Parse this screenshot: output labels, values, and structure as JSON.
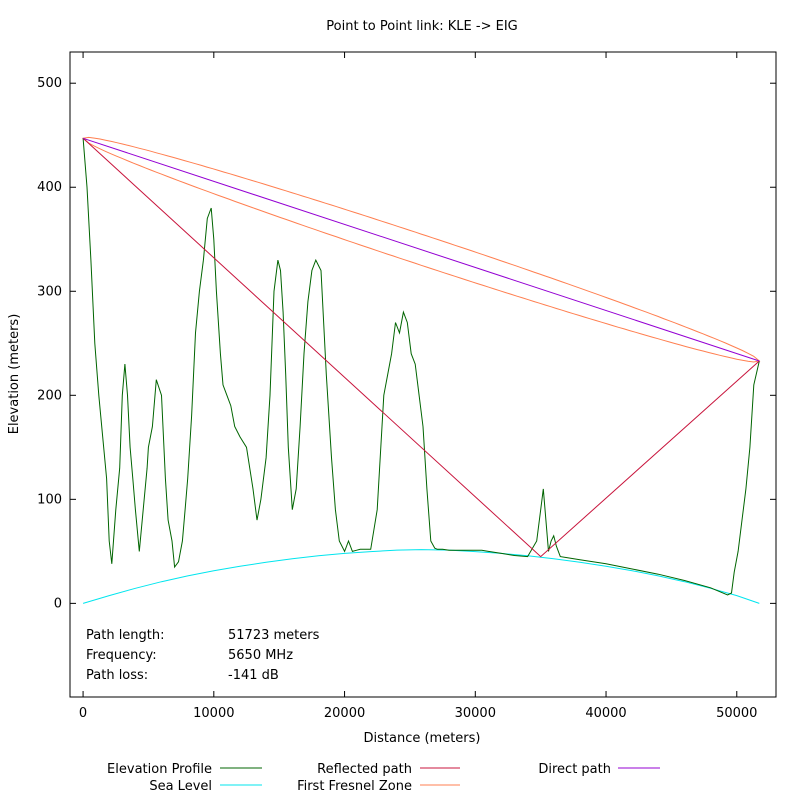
{
  "chart_data": {
    "type": "line",
    "title": "Point to Point link: KLE -> EIG",
    "xlabel": "Distance (meters)",
    "ylabel": "Elevation (meters)",
    "xlim": [
      -1000,
      53000
    ],
    "ylim": [
      -90,
      530
    ],
    "x_ticks": [
      0,
      10000,
      20000,
      30000,
      40000,
      50000
    ],
    "y_ticks": [
      0,
      100,
      200,
      300,
      400,
      500
    ],
    "grid": false,
    "legend_placement": "bottom",
    "info": [
      {
        "label": "Path length:",
        "value": "51723 meters"
      },
      {
        "label": "Frequency:",
        "value": "5650 MHz"
      },
      {
        "label": "Path loss:",
        "value": "-141 dB"
      }
    ],
    "series": [
      {
        "name": "Elevation Profile",
        "color": "#006400",
        "x": [
          0,
          300,
          600,
          900,
          1200,
          1500,
          1800,
          2000,
          2200,
          2500,
          2800,
          3000,
          3200,
          3400,
          3600,
          3800,
          4000,
          4300,
          4600,
          4900,
          5000,
          5300,
          5600,
          6000,
          6300,
          6500,
          6800,
          7000,
          7300,
          7600,
          7800,
          8000,
          8300,
          8600,
          8900,
          9200,
          9500,
          9800,
          10000,
          10200,
          10500,
          10700,
          11000,
          11300,
          11600,
          12000,
          12500,
          13000,
          13300,
          13600,
          14000,
          14300,
          14600,
          14900,
          15100,
          15300,
          15500,
          15700,
          16000,
          16300,
          16600,
          16900,
          17200,
          17500,
          17800,
          18200,
          18600,
          19000,
          19300,
          19600,
          20000,
          20300,
          20600,
          20900,
          21200,
          21500,
          21800,
          22000,
          22500,
          23000,
          23300,
          23600,
          23900,
          24200,
          24500,
          24800,
          25100,
          25400,
          25700,
          26000,
          26300,
          26600,
          26900,
          27100,
          27500,
          28000,
          29000,
          30000,
          30500,
          31000,
          32000,
          33000,
          34000,
          34700,
          35000,
          35200,
          35400,
          35600,
          35800,
          36000,
          36200,
          36500,
          37000,
          38000,
          40000,
          42000,
          44000,
          46000,
          48000,
          49300,
          49600,
          49800,
          50100,
          50400,
          50700,
          51000,
          51300,
          51723
        ],
        "y": [
          447,
          400,
          330,
          250,
          200,
          160,
          120,
          60,
          38,
          90,
          130,
          200,
          230,
          200,
          150,
          120,
          90,
          50,
          90,
          130,
          150,
          170,
          215,
          200,
          120,
          80,
          60,
          35,
          40,
          60,
          90,
          120,
          180,
          260,
          300,
          330,
          370,
          380,
          350,
          300,
          240,
          210,
          200,
          190,
          170,
          160,
          150,
          110,
          80,
          100,
          140,
          200,
          300,
          330,
          320,
          280,
          220,
          150,
          90,
          110,
          170,
          240,
          290,
          320,
          330,
          320,
          220,
          140,
          90,
          60,
          50,
          60,
          50,
          51,
          52,
          52,
          52,
          52,
          90,
          200,
          220,
          240,
          270,
          260,
          280,
          270,
          240,
          230,
          200,
          170,
          110,
          60,
          53,
          52,
          52,
          51,
          51,
          51,
          51,
          50,
          48,
          46,
          45,
          60,
          90,
          110,
          80,
          50,
          60,
          65,
          55,
          45,
          44,
          42,
          38,
          33,
          28,
          22,
          15,
          8,
          10,
          30,
          50,
          80,
          110,
          150,
          210,
          233
        ]
      },
      {
        "name": "Sea Level",
        "color": "#00e5ee",
        "x": [
          0,
          2000,
          4000,
          6000,
          8000,
          10000,
          12000,
          14000,
          16000,
          18000,
          20000,
          22000,
          24000,
          25862,
          28000,
          30000,
          32000,
          34000,
          36000,
          38000,
          40000,
          42000,
          44000,
          46000,
          48000,
          50000,
          51723
        ],
        "y": [
          0,
          7.5,
          14.5,
          20.8,
          26.4,
          31.4,
          35.7,
          39.5,
          42.8,
          45.7,
          48.0,
          49.8,
          51.2,
          51.7,
          51.2,
          49.8,
          48.0,
          45.7,
          42.8,
          39.5,
          35.7,
          31.4,
          26.4,
          20.8,
          14.5,
          7.5,
          0
        ]
      },
      {
        "name": "Reflected path",
        "color": "#c8143c",
        "x": [
          0,
          35000,
          51723
        ],
        "y": [
          447,
          45,
          233
        ]
      },
      {
        "name": "First Fresnel Zone",
        "color": "#ff7f50"
      },
      {
        "name": "Direct path",
        "color": "#9400d3",
        "x": [
          0,
          51723
        ],
        "y": [
          447,
          233
        ]
      }
    ],
    "fresnel": {
      "start": [
        0,
        447
      ],
      "end": [
        51723,
        233
      ],
      "half_width_max": 15
    }
  }
}
